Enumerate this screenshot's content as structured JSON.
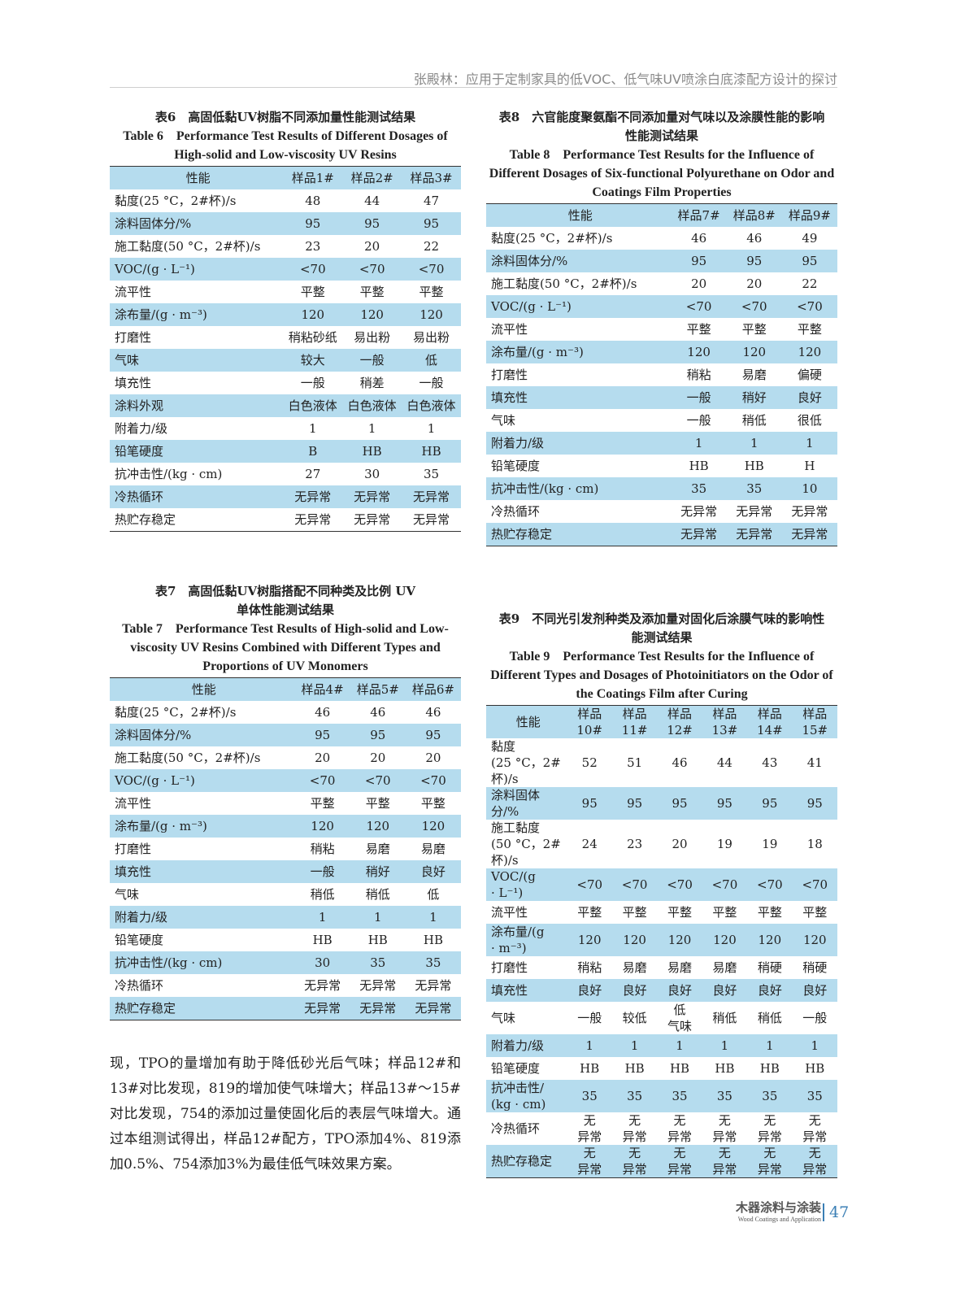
{
  "header": {
    "running_title": "张殿林：应用于定制家具的低VOC、低气味UV喷涂白底漆配方设计的探讨"
  },
  "table6": {
    "cap_cn": "表6　高固低黏UV树脂不同添加量性能测试结果",
    "cap_en": "Table 6　Performance Test Results of Different Dosages of High-solid and Low-viscosity UV Resins",
    "head": [
      "性能",
      "样品1#",
      "样品2#",
      "样品3#"
    ],
    "rows": [
      [
        "黏度(25 °C，2#杯)/s",
        "48",
        "44",
        "47"
      ],
      [
        "涂料固体分/%",
        "95",
        "95",
        "95"
      ],
      [
        "施工黏度(50 °C，2#杯)/s",
        "23",
        "20",
        "22"
      ],
      [
        "VOC/(g · L⁻¹)",
        "<70",
        "<70",
        "<70"
      ],
      [
        "流平性",
        "平整",
        "平整",
        "平整"
      ],
      [
        "涂布量/(g · m⁻³)",
        "120",
        "120",
        "120"
      ],
      [
        "打磨性",
        "稍粘砂纸",
        "易出粉",
        "易出粉"
      ],
      [
        "气味",
        "较大",
        "一般",
        "低"
      ],
      [
        "填充性",
        "一般",
        "稍差",
        "一般"
      ],
      [
        "涂料外观",
        "白色液体",
        "白色液体",
        "白色液体"
      ],
      [
        "附着力/级",
        "1",
        "1",
        "1"
      ],
      [
        "铅笔硬度",
        "B",
        "HB",
        "HB"
      ],
      [
        "抗冲击性/(kg · cm)",
        "27",
        "30",
        "35"
      ],
      [
        "冷热循环",
        "无异常",
        "无异常",
        "无异常"
      ],
      [
        "热贮存稳定",
        "无异常",
        "无异常",
        "无异常"
      ]
    ]
  },
  "table7": {
    "cap_cn": "表7　高固低黏UV树脂搭配不同种类及比例 UV单体性能测试结果",
    "cap_en": "Table 7　Performance Test Results of High-solid and Low-viscosity UV Resins Combined with Different Types and Proportions of UV Monomers",
    "head": [
      "性能",
      "样品4#",
      "样品5#",
      "样品6#"
    ],
    "rows": [
      [
        "黏度(25 °C，2#杯)/s",
        "46",
        "46",
        "46"
      ],
      [
        "涂料固体分/%",
        "95",
        "95",
        "95"
      ],
      [
        "施工黏度(50 °C，2#杯)/s",
        "20",
        "20",
        "20"
      ],
      [
        "VOC/(g · L⁻¹)",
        "<70",
        "<70",
        "<70"
      ],
      [
        "流平性",
        "平整",
        "平整",
        "平整"
      ],
      [
        "涂布量/(g · m⁻³)",
        "120",
        "120",
        "120"
      ],
      [
        "打磨性",
        "稍粘",
        "易磨",
        "易磨"
      ],
      [
        "填充性",
        "一般",
        "稍好",
        "良好"
      ],
      [
        "气味",
        "稍低",
        "稍低",
        "低"
      ],
      [
        "附着力/级",
        "1",
        "1",
        "1"
      ],
      [
        "铅笔硬度",
        "HB",
        "HB",
        "HB"
      ],
      [
        "抗冲击性/(kg · cm)",
        "30",
        "35",
        "35"
      ],
      [
        "冷热循环",
        "无异常",
        "无异常",
        "无异常"
      ],
      [
        "热贮存稳定",
        "无异常",
        "无异常",
        "无异常"
      ]
    ]
  },
  "table8": {
    "cap_cn": "表8　六官能度聚氨酯不同添加量对气味以及涂膜性能的影响性能测试结果",
    "cap_en": "Table 8　Performance Test Results for the Influence of Different Dosages of Six-functional Polyurethane on Odor and Coatings Film Properties",
    "head": [
      "性能",
      "样品7#",
      "样品8#",
      "样品9#"
    ],
    "rows": [
      [
        "黏度(25 °C，2#杯)/s",
        "46",
        "46",
        "49"
      ],
      [
        "涂料固体分/%",
        "95",
        "95",
        "95"
      ],
      [
        "施工黏度(50 °C，2#杯)/s",
        "20",
        "20",
        "22"
      ],
      [
        "VOC/(g · L⁻¹)",
        "<70",
        "<70",
        "<70"
      ],
      [
        "流平性",
        "平整",
        "平整",
        "平整"
      ],
      [
        "涂布量/(g · m⁻³)",
        "120",
        "120",
        "120"
      ],
      [
        "打磨性",
        "稍粘",
        "易磨",
        "偏硬"
      ],
      [
        "填充性",
        "一般",
        "稍好",
        "良好"
      ],
      [
        "气味",
        "一般",
        "稍低",
        "很低"
      ],
      [
        "附着力/级",
        "1",
        "1",
        "1"
      ],
      [
        "铅笔硬度",
        "HB",
        "HB",
        "H"
      ],
      [
        "抗冲击性/(kg · cm)",
        "35",
        "35",
        "10"
      ],
      [
        "冷热循环",
        "无异常",
        "无异常",
        "无异常"
      ],
      [
        "热贮存稳定",
        "无异常",
        "无异常",
        "无异常"
      ]
    ]
  },
  "table9": {
    "cap_cn": "表9　不同光引发剂种类及添加量对固化后涂膜气味的影响性能测试结果",
    "cap_en": "Table 9　Performance Test Results for the Influence of Different Types and Dosages of Photoinitiators on the Odor of the Coatings Film after Curing",
    "head": [
      "性能",
      "样品 10#",
      "样品 11#",
      "样品 12#",
      "样品 13#",
      "样品 14#",
      "样品 15#"
    ],
    "rows": [
      [
        "黏度 (25 °C，2#杯)/s",
        "52",
        "51",
        "46",
        "44",
        "43",
        "41"
      ],
      [
        "涂料固体分/%",
        "95",
        "95",
        "95",
        "95",
        "95",
        "95"
      ],
      [
        "施工黏度 (50 °C，2#杯)/s",
        "24",
        "23",
        "20",
        "19",
        "19",
        "18"
      ],
      [
        "VOC/(g · L⁻¹)",
        "<70",
        "<70",
        "<70",
        "<70",
        "<70",
        "<70"
      ],
      [
        "流平性",
        "平整",
        "平整",
        "平整",
        "平整",
        "平整",
        "平整"
      ],
      [
        "涂布量/(g · m⁻³)",
        "120",
        "120",
        "120",
        "120",
        "120",
        "120"
      ],
      [
        "打磨性",
        "稍粘",
        "易磨",
        "易磨",
        "易磨",
        "稍硬",
        "稍硬"
      ],
      [
        "填充性",
        "良好",
        "良好",
        "良好",
        "良好",
        "良好",
        "良好"
      ],
      [
        "气味",
        "一般",
        "较低",
        "低 气味",
        "稍低",
        "稍低",
        "一般"
      ],
      [
        "附着力/级",
        "1",
        "1",
        "1",
        "1",
        "1",
        "1"
      ],
      [
        "铅笔硬度",
        "HB",
        "HB",
        "HB",
        "HB",
        "HB",
        "HB"
      ],
      [
        "抗冲击性/ (kg · cm)",
        "35",
        "35",
        "35",
        "35",
        "35",
        "35"
      ],
      [
        "冷热循环",
        "无 异常",
        "无 异常",
        "无 异常",
        "无 异常",
        "无 异常",
        "无 异常"
      ],
      [
        "热贮存稳定",
        "无 异常",
        "无 异常",
        "无 异常",
        "无 异常",
        "无 异常",
        "无 异常"
      ]
    ]
  },
  "body_text": "现，TPO的量增加有助于降低砂光后气味；样品12#和13#对比发现，819的增加使气味增大；样品13#～15#对比发现，754的添加过量使固化后的表层气味增大。通过本组测试得出，样品12#配方，TPO添加4%、819添加0.5%、754添加3%为最佳低气味效果方案。",
  "footer": {
    "journal_cn": "木器涂料与涂装",
    "journal_en": "Wood Coatings and Application",
    "page": "47"
  },
  "colors": {
    "row_highlight": "#b5dcee",
    "accent": "#3b7fb5"
  }
}
